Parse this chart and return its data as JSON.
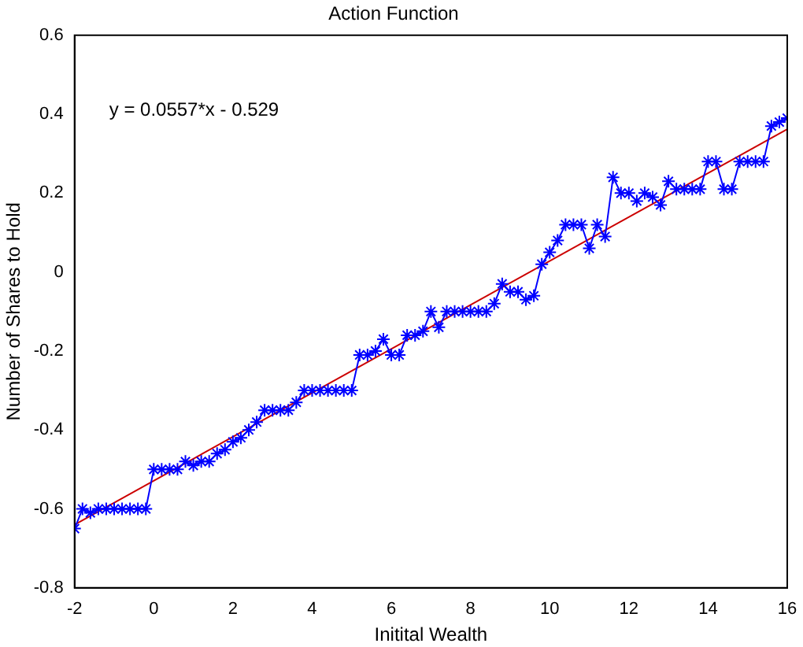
{
  "chart_data": {
    "type": "line",
    "title": "Action Function",
    "xlabel": "Initital Wealth",
    "ylabel": "Number of Shares to Hold",
    "annotations": [
      "y = 0.0557*x - 0.529"
    ],
    "xlim": [
      -2,
      16
    ],
    "xticks": [
      -2,
      0,
      2,
      4,
      6,
      8,
      10,
      12,
      14,
      16
    ],
    "ylim": [
      -0.8,
      0.6
    ],
    "yticks": [
      -0.8,
      -0.6,
      -0.4,
      -0.2,
      0,
      0.2,
      0.4,
      0.6
    ],
    "grid": false,
    "legend": false,
    "series": [
      {
        "color": "#0000ff",
        "marker": "cross",
        "x": [
          -2,
          -1.8,
          -1.6,
          -1.4,
          -1.2,
          -1,
          -0.8,
          -0.6,
          -0.4,
          -0.2,
          0,
          0.2,
          0.4,
          0.6,
          0.8,
          1,
          1.2,
          1.4,
          1.6,
          1.8,
          2,
          2.2,
          2.4,
          2.6,
          2.8,
          3,
          3.2,
          3.4,
          3.6,
          3.8,
          4,
          4.2,
          4.4,
          4.6,
          4.8,
          5,
          5.2,
          5.4,
          5.6,
          5.8,
          6,
          6.2,
          6.4,
          6.6,
          6.8,
          7,
          7.2,
          7.4,
          7.6,
          7.8,
          8,
          8.2,
          8.4,
          8.6,
          8.8,
          9,
          9.2,
          9.4,
          9.6,
          9.8,
          10,
          10.2,
          10.4,
          10.6,
          10.8,
          11,
          11.2,
          11.4,
          11.6,
          11.8,
          12,
          12.2,
          12.4,
          12.6,
          12.8,
          13,
          13.2,
          13.4,
          13.6,
          13.8,
          14,
          14.2,
          14.4,
          14.6,
          14.8,
          15,
          15.2,
          15.4,
          15.6,
          15.8,
          16
        ],
        "values": [
          -0.65,
          -0.6,
          -0.61,
          -0.6,
          -0.6,
          -0.6,
          -0.6,
          -0.6,
          -0.6,
          -0.6,
          -0.5,
          -0.5,
          -0.5,
          -0.5,
          -0.48,
          -0.49,
          -0.48,
          -0.48,
          -0.46,
          -0.45,
          -0.43,
          -0.42,
          -0.4,
          -0.38,
          -0.35,
          -0.35,
          -0.35,
          -0.35,
          -0.33,
          -0.3,
          -0.3,
          -0.3,
          -0.3,
          -0.3,
          -0.3,
          -0.3,
          -0.21,
          -0.21,
          -0.2,
          -0.17,
          -0.21,
          -0.21,
          -0.16,
          -0.16,
          -0.15,
          -0.1,
          -0.14,
          -0.1,
          -0.1,
          -0.1,
          -0.1,
          -0.1,
          -0.1,
          -0.08,
          -0.03,
          -0.05,
          -0.05,
          -0.07,
          -0.06,
          0.02,
          0.05,
          0.08,
          0.12,
          0.12,
          0.12,
          0.06,
          0.12,
          0.09,
          0.24,
          0.2,
          0.2,
          0.18,
          0.2,
          0.19,
          0.17,
          0.23,
          0.21,
          0.21,
          0.21,
          0.21,
          0.28,
          0.28,
          0.21,
          0.21,
          0.28,
          0.28,
          0.28,
          0.28,
          0.37,
          0.38,
          0.39
        ]
      },
      {
        "color": "#cc0000",
        "marker": "none",
        "x": [
          -2,
          16
        ],
        "values": [
          -0.64,
          0.362
        ]
      }
    ]
  }
}
